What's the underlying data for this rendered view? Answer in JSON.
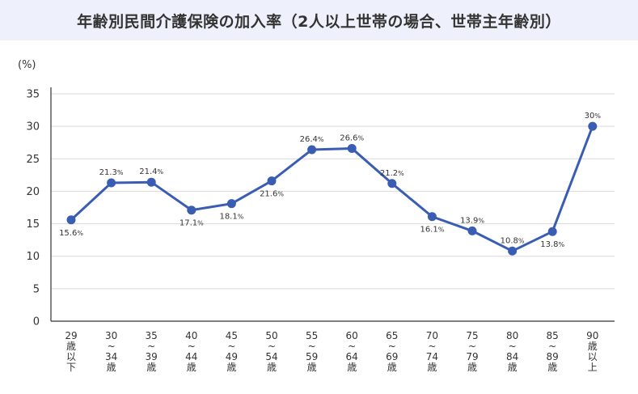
{
  "title": "年齢別民間介護保険の加入率（2人以上世帯の場合、世帯主年齢別）",
  "colors": {
    "title_bg": "#eef1fb",
    "line": "#3a5db4",
    "grid": "#d9d9d9",
    "axis": "#333333"
  },
  "chart_data": {
    "type": "line",
    "title": "年齢別民間介護保険の加入率（2人以上世帯の場合、世帯主年齢別）",
    "unit_label": "(%)",
    "xlabel": "",
    "ylabel": "",
    "ylim": [
      0,
      35
    ],
    "y_ticks": [
      0,
      5,
      10,
      15,
      20,
      25,
      30,
      35
    ],
    "grid": true,
    "legend": "none",
    "categories": [
      [
        "29",
        "歳",
        "以",
        "下"
      ],
      [
        "30",
        "~",
        "34",
        "歳"
      ],
      [
        "35",
        "~",
        "39",
        "歳"
      ],
      [
        "40",
        "~",
        "44",
        "歳"
      ],
      [
        "45",
        "~",
        "49",
        "歳"
      ],
      [
        "50",
        "~",
        "54",
        "歳"
      ],
      [
        "55",
        "~",
        "59",
        "歳"
      ],
      [
        "60",
        "~",
        "64",
        "歳"
      ],
      [
        "65",
        "~",
        "69",
        "歳"
      ],
      [
        "70",
        "~",
        "74",
        "歳"
      ],
      [
        "75",
        "~",
        "79",
        "歳"
      ],
      [
        "80",
        "~",
        "84",
        "歳"
      ],
      [
        "85",
        "~",
        "89",
        "歳"
      ],
      [
        "90",
        "歳",
        "以",
        "上"
      ]
    ],
    "values": [
      15.6,
      21.3,
      21.4,
      17.1,
      18.1,
      21.6,
      26.4,
      26.6,
      21.2,
      16.1,
      13.9,
      10.8,
      13.8,
      30
    ],
    "value_labels": [
      "15.6",
      "21.3",
      "21.4",
      "17.1",
      "18.1",
      "21.6",
      "26.4",
      "26.6",
      "21.2",
      "16.1",
      "13.9",
      "10.8",
      "13.8",
      "30"
    ],
    "label_suffix": "%",
    "label_positions": [
      "below",
      "above",
      "above",
      "below",
      "below",
      "below",
      "above",
      "above",
      "above",
      "below",
      "above",
      "above",
      "below",
      "above"
    ]
  }
}
